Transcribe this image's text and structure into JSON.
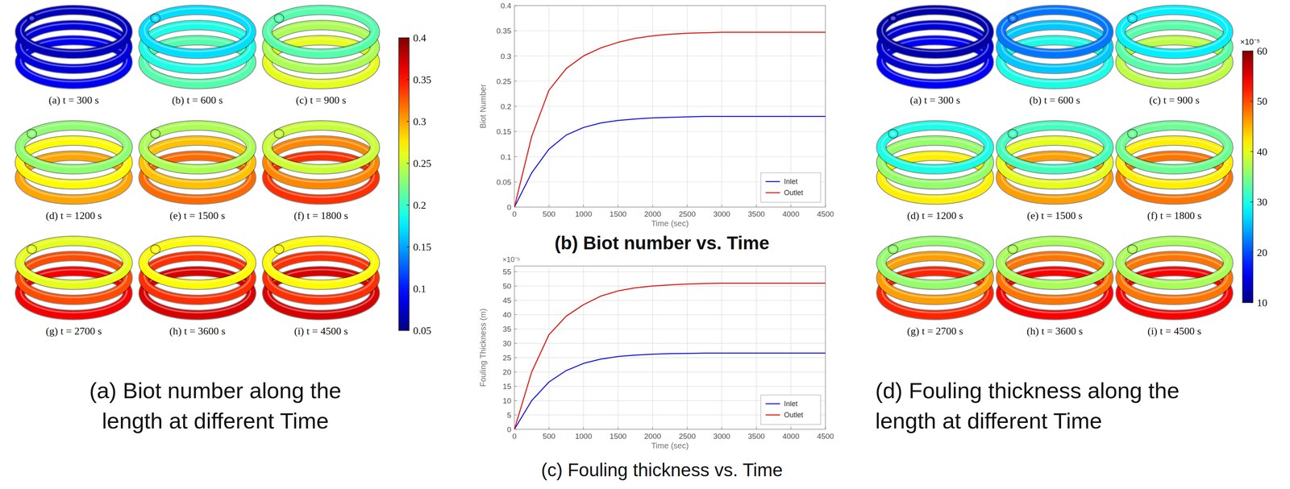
{
  "chart_data": [
    {
      "type": "coil_map",
      "title": "(a) Biot number along the length at different Time",
      "colorbar": {
        "range": [
          0.05,
          0.4
        ],
        "ticks": [
          0.05,
          0.1,
          0.15,
          0.2,
          0.25,
          0.3,
          0.35,
          0.4
        ]
      },
      "snapshots": [
        {
          "label": "(a) t = 300 s",
          "values": [
            0.07,
            0.08,
            0.09
          ]
        },
        {
          "label": "(b) t = 600 s",
          "values": [
            0.17,
            0.19,
            0.21
          ]
        },
        {
          "label": "(c) t = 900 s",
          "values": [
            0.21,
            0.24,
            0.26
          ]
        },
        {
          "label": "(d) t = 1200 s",
          "values": [
            0.23,
            0.27,
            0.3
          ]
        },
        {
          "label": "(e) t = 1500 s",
          "values": [
            0.24,
            0.29,
            0.32
          ]
        },
        {
          "label": "(f) t = 1800 s",
          "values": [
            0.25,
            0.31,
            0.34
          ]
        },
        {
          "label": "(g) t = 2700 s",
          "values": [
            0.26,
            0.33,
            0.36
          ]
        },
        {
          "label": "(h) t = 3600 s",
          "values": [
            0.27,
            0.34,
            0.37
          ]
        },
        {
          "label": "(i) t = 4500 s",
          "values": [
            0.27,
            0.34,
            0.37
          ]
        }
      ]
    },
    {
      "type": "line",
      "title": "(b) Biot number vs. Time",
      "xlabel": "Time (sec)",
      "ylabel": "Biot Number",
      "x": [
        0,
        250,
        500,
        750,
        1000,
        1250,
        1500,
        1750,
        2000,
        2250,
        2500,
        2750,
        3000,
        3250,
        3500,
        3750,
        4000,
        4250,
        4500
      ],
      "series": [
        {
          "name": "Inlet",
          "color": "#1515e0",
          "values": [
            0,
            0.068,
            0.115,
            0.143,
            0.158,
            0.167,
            0.172,
            0.175,
            0.177,
            0.178,
            0.179,
            0.18,
            0.18,
            0.18,
            0.18,
            0.18,
            0.18,
            0.18,
            0.18
          ]
        },
        {
          "name": "Outlet",
          "color": "#e01515",
          "values": [
            0,
            0.14,
            0.232,
            0.275,
            0.3,
            0.316,
            0.327,
            0.335,
            0.34,
            0.343,
            0.345,
            0.346,
            0.347,
            0.347,
            0.347,
            0.347,
            0.347,
            0.347,
            0.347
          ]
        }
      ],
      "xlim": [
        0,
        4500
      ],
      "xticks": [
        0,
        500,
        1000,
        1500,
        2000,
        2500,
        3000,
        3500,
        4000,
        4500
      ],
      "ylim": [
        0,
        0.4
      ],
      "yticks": [
        0,
        0.05,
        0.1,
        0.15,
        0.2,
        0.25,
        0.3,
        0.35,
        0.4
      ],
      "grid": true,
      "legend": "lower right"
    },
    {
      "type": "line",
      "title": "(c) Fouling thickness vs. Time",
      "xlabel": "Time (sec)",
      "ylabel": "Fouling Thickness (m)",
      "y_multiplier_label": "×10⁻⁵",
      "x": [
        0,
        250,
        500,
        750,
        1000,
        1250,
        1500,
        1750,
        2000,
        2250,
        2500,
        2750,
        3000,
        3250,
        3500,
        3750,
        4000,
        4250,
        4500
      ],
      "series": [
        {
          "name": "Inlet",
          "color": "#1515e0",
          "values": [
            0,
            10,
            16.5,
            20.5,
            23,
            24.5,
            25.4,
            25.9,
            26.2,
            26.4,
            26.5,
            26.6,
            26.6,
            26.6,
            26.6,
            26.6,
            26.6,
            26.6,
            26.6
          ]
        },
        {
          "name": "Outlet",
          "color": "#e01515",
          "values": [
            0,
            20,
            33,
            39.5,
            43.5,
            46.5,
            48.3,
            49.4,
            50,
            50.4,
            50.7,
            50.9,
            51,
            51,
            51,
            51,
            51,
            51,
            51
          ]
        }
      ],
      "xlim": [
        0,
        4500
      ],
      "xticks": [
        0,
        500,
        1000,
        1500,
        2000,
        2500,
        3000,
        3500,
        4000,
        4500
      ],
      "ylim": [
        0,
        57
      ],
      "yticks": [
        0,
        5,
        10,
        15,
        20,
        25,
        30,
        35,
        40,
        45,
        50,
        55
      ],
      "grid": true,
      "legend": "lower right"
    },
    {
      "type": "coil_map",
      "title": "(d) Fouling thickness along the length at different Time",
      "colorbar": {
        "range": [
          10,
          60
        ],
        "ticks": [
          10,
          20,
          30,
          40,
          50,
          60
        ],
        "label": "×10⁻⁵"
      },
      "snapshots": [
        {
          "label": "(a) t = 300 s",
          "values": [
            12,
            14,
            16
          ]
        },
        {
          "label": "(b) t = 600 s",
          "values": [
            22,
            26,
            30
          ]
        },
        {
          "label": "(c) t = 900 s",
          "values": [
            28,
            33,
            38
          ]
        },
        {
          "label": "(d) t = 1200 s",
          "values": [
            30,
            36,
            42
          ]
        },
        {
          "label": "(e) t = 1500 s",
          "values": [
            32,
            40,
            46
          ]
        },
        {
          "label": "(f) t = 1800 s",
          "values": [
            34,
            42,
            48
          ]
        },
        {
          "label": "(g) t = 2700 s",
          "values": [
            36,
            46,
            52
          ]
        },
        {
          "label": "(h) t = 3600 s",
          "values": [
            37,
            48,
            54
          ]
        },
        {
          "label": "(i) t = 4500 s",
          "values": [
            37,
            48,
            54
          ]
        }
      ]
    }
  ]
}
